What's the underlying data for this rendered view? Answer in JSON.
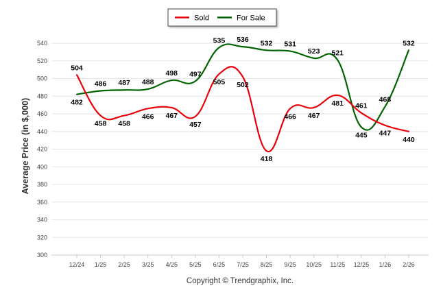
{
  "chart_data": {
    "type": "line",
    "title": "",
    "xlabel": "",
    "ylabel": "Average Price (in $,000)",
    "ylim": [
      300,
      540
    ],
    "yticks": [
      300,
      320,
      340,
      360,
      380,
      400,
      420,
      440,
      460,
      480,
      500,
      520,
      540
    ],
    "grid": true,
    "legend_position": "top-center",
    "categories": [
      "12/24",
      "1/25",
      "2/25",
      "3/25",
      "4/25",
      "5/25",
      "6/25",
      "7/25",
      "8/25",
      "9/25",
      "10/25",
      "11/25",
      "12/25",
      "1/26",
      "2/26"
    ],
    "series": [
      {
        "name": "Sold",
        "color": "#e8000b",
        "values": [
          504,
          458,
          458,
          466,
          467,
          457,
          505,
          502,
          418,
          466,
          467,
          481,
          461,
          447,
          440
        ]
      },
      {
        "name": "For Sale",
        "color": "#006400",
        "values": [
          482,
          486,
          487,
          488,
          498,
          497,
          535,
          536,
          532,
          531,
          523,
          521,
          445,
          468,
          532
        ]
      }
    ],
    "credit": "Copyright © Trendgraphix, Inc."
  }
}
